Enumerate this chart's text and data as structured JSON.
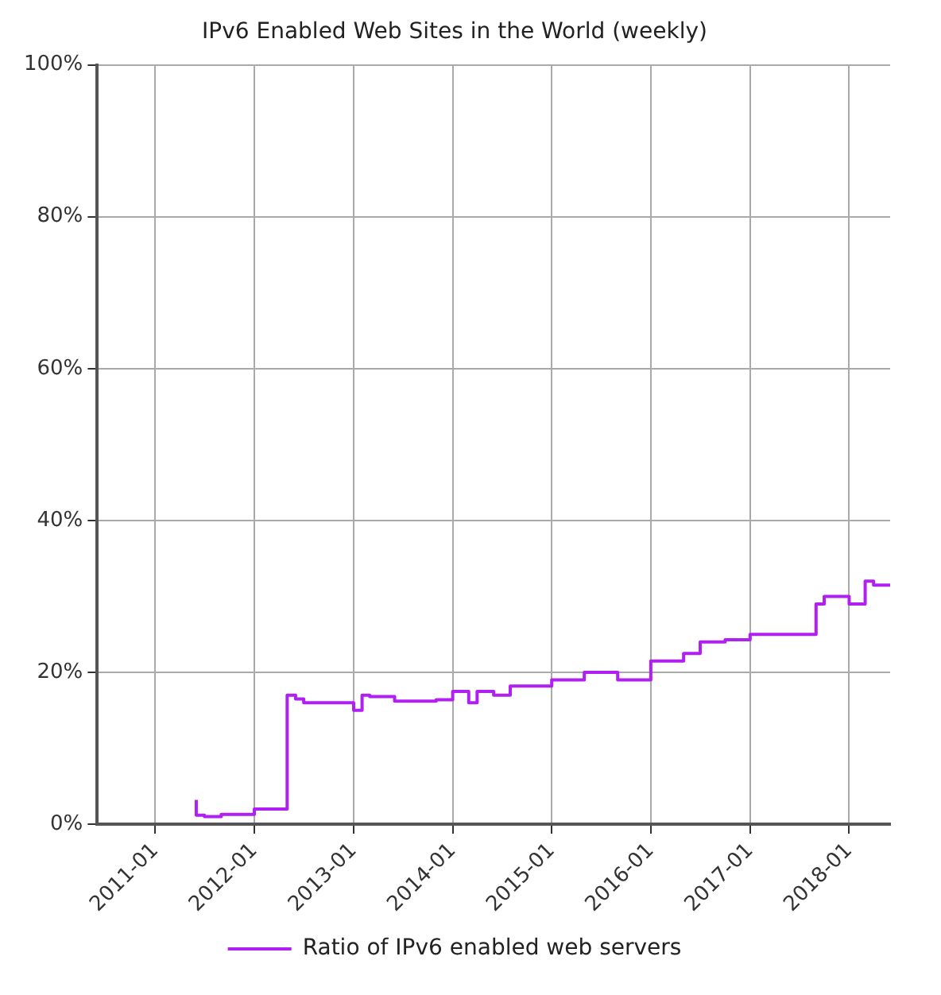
{
  "chart_data": {
    "type": "step",
    "title": "IPv6 Enabled Web Sites in the World (weekly)",
    "x": [
      "2011-06",
      "2011-07",
      "2011-09",
      "2012-01",
      "2012-05",
      "2012-06",
      "2012-07",
      "2012-09",
      "2013-01",
      "2013-02",
      "2013-03",
      "2013-06",
      "2013-11",
      "2014-01",
      "2014-03",
      "2014-04",
      "2014-06",
      "2014-08",
      "2015-01",
      "2015-05",
      "2015-09",
      "2016-01",
      "2016-05",
      "2016-07",
      "2016-10",
      "2017-01",
      "2017-07",
      "2017-09",
      "2017-10",
      "2018-01",
      "2018-03",
      "2018-04",
      "2018-06"
    ],
    "series": [
      {
        "name": "Ratio of IPv6 enabled web servers",
        "color": "#b020f0",
        "values": [
          3.2,
          1.2,
          1.0,
          1.3,
          2.0,
          17,
          16.5,
          16,
          16,
          15,
          17,
          16.8,
          16.2,
          16.4,
          17.5,
          16,
          17.5,
          17,
          18.2,
          19,
          20,
          19,
          21.5,
          22.5,
          24,
          24.3,
          25,
          25,
          29,
          30,
          29,
          32,
          31.5
        ]
      }
    ],
    "xlim": [
      "2010-06",
      "2018-06"
    ],
    "xticks": [
      "2011-01",
      "2012-01",
      "2013-01",
      "2014-01",
      "2015-01",
      "2016-01",
      "2017-01",
      "2018-01"
    ],
    "ylim": [
      0,
      100
    ],
    "yticks": [
      {
        "value": 0,
        "label": "0%"
      },
      {
        "value": 20,
        "label": "20%"
      },
      {
        "value": 40,
        "label": "40%"
      },
      {
        "value": 60,
        "label": "60%"
      },
      {
        "value": 80,
        "label": "80%"
      },
      {
        "value": 100,
        "label": "100%"
      }
    ],
    "grid": true,
    "legend": "bottom",
    "marker": "none",
    "line_style": "solid"
  }
}
